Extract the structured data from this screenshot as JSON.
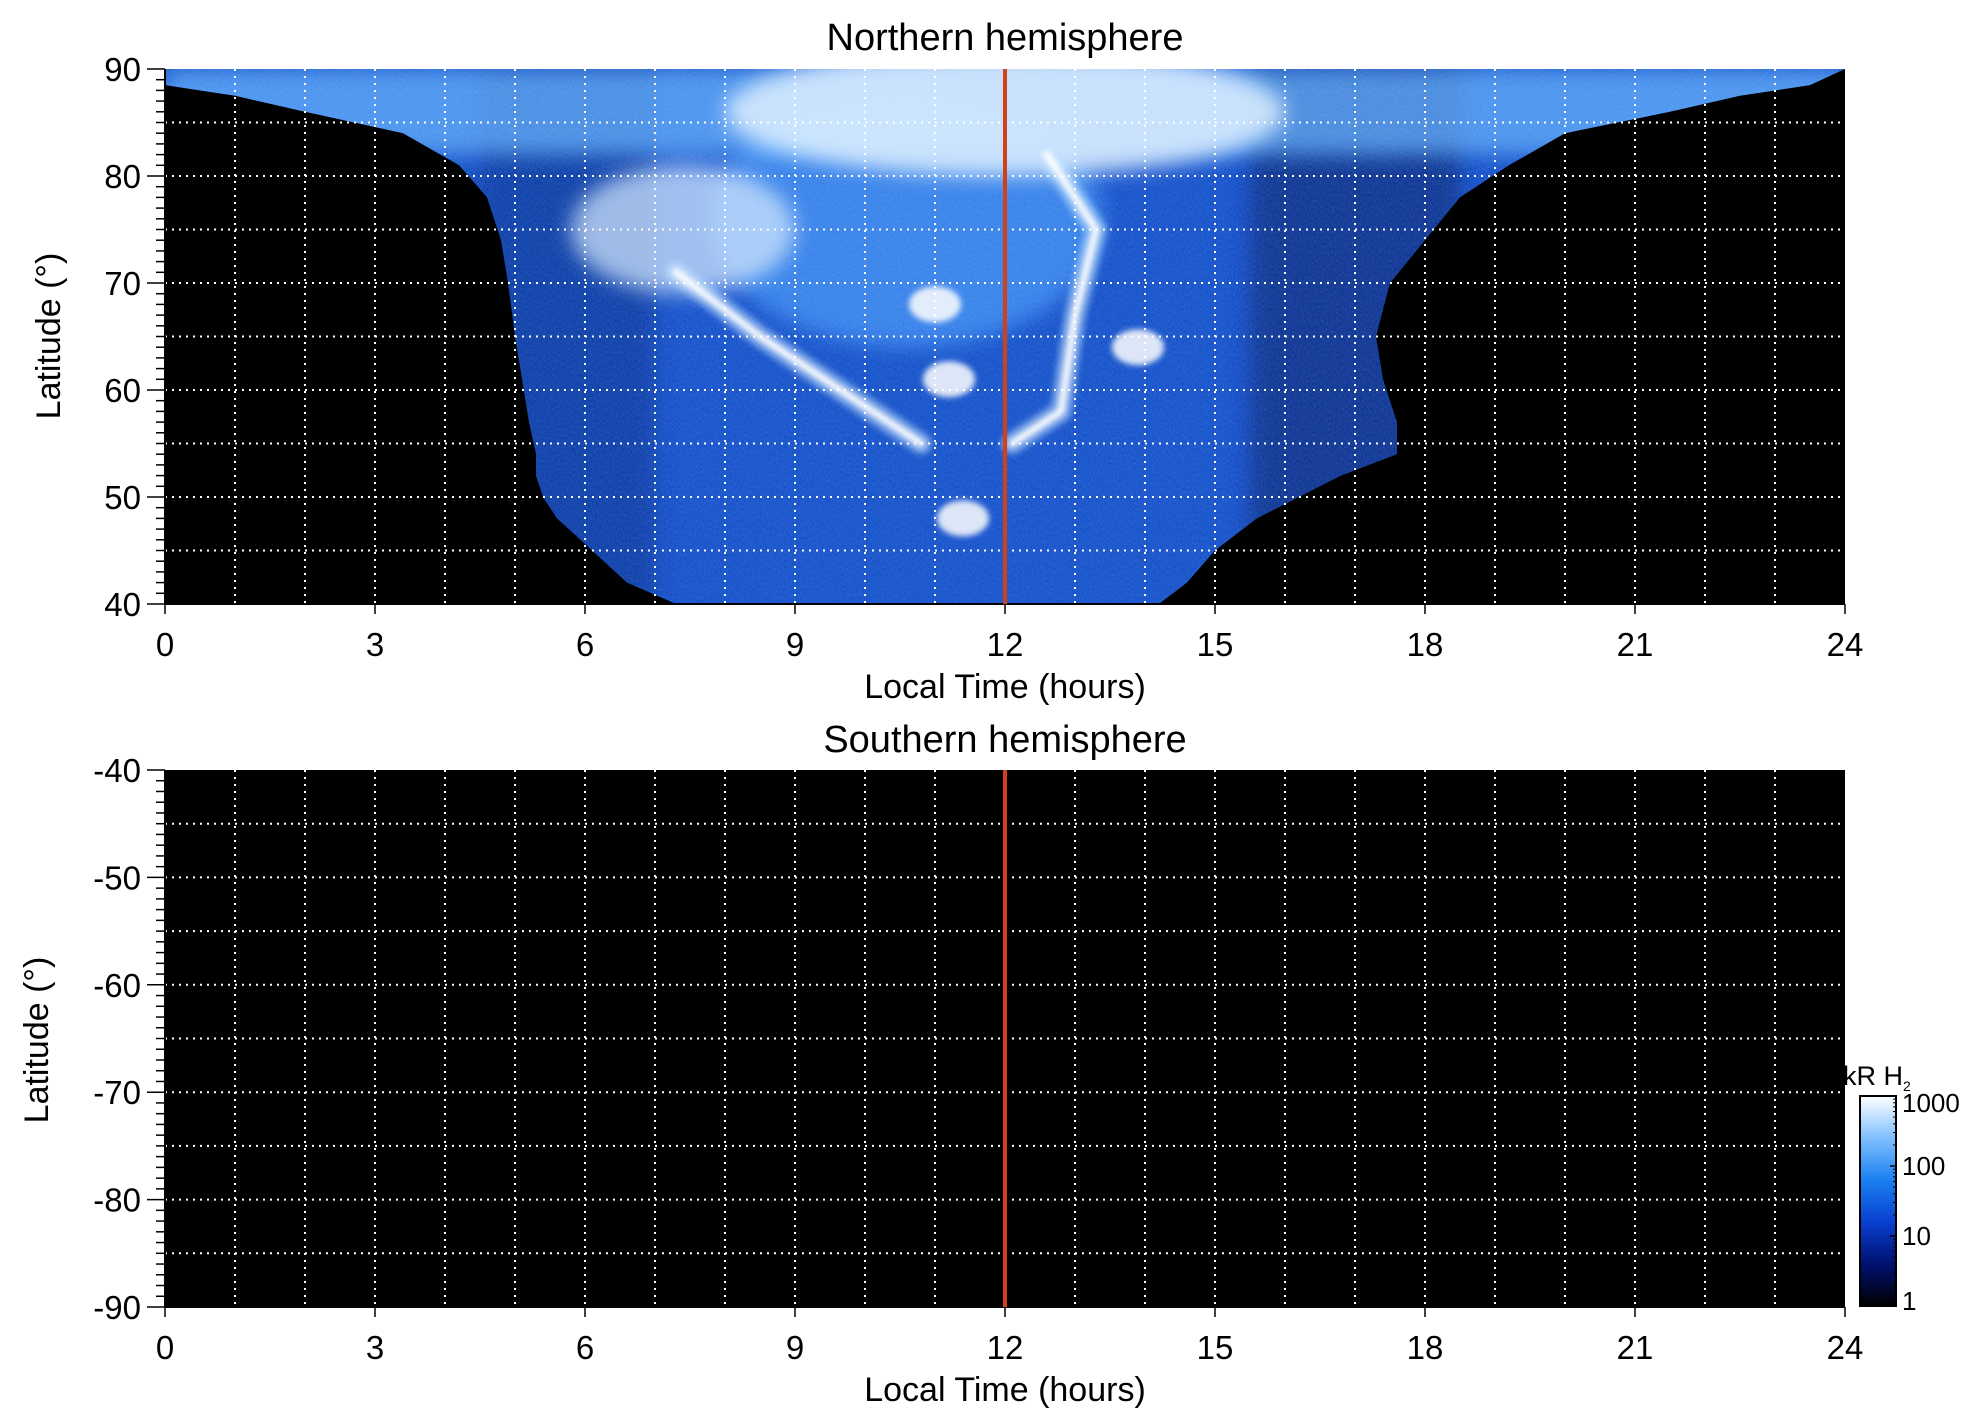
{
  "chart_data": [
    {
      "type": "heatmap",
      "title": "Northern hemisphere",
      "xlabel": "Local Time (hours)",
      "ylabel": "Latitude (°)",
      "xlim": [
        0,
        24
      ],
      "ylim": [
        40,
        90
      ],
      "xticks": [
        0,
        3,
        6,
        9,
        12,
        15,
        18,
        21,
        24
      ],
      "yticks": [
        40,
        50,
        60,
        70,
        80,
        90
      ],
      "grid": true,
      "background": "#000000",
      "marker_line": {
        "x": 12,
        "color": "#d0401a"
      },
      "coverage": {
        "lat_min_start": 40,
        "edges": [
          {
            "lat": 40,
            "lt_start": 7.3,
            "lt_end": 14.2
          },
          {
            "lat": 42,
            "lt_start": 6.6,
            "lt_end": 14.6
          },
          {
            "lat": 45,
            "lt_start": 6.1,
            "lt_end": 15.0
          },
          {
            "lat": 48,
            "lt_start": 5.6,
            "lt_end": 15.6
          },
          {
            "lat": 50,
            "lt_start": 5.4,
            "lt_end": 16.2
          },
          {
            "lat": 52,
            "lt_start": 5.3,
            "lt_end": 16.8
          },
          {
            "lat": 54,
            "lt_start": 5.3,
            "lt_end": 17.6
          },
          {
            "lat": 57,
            "lt_start": 5.2,
            "lt_end": 17.6
          },
          {
            "lat": 61,
            "lt_start": 5.1,
            "lt_end": 17.4
          },
          {
            "lat": 65,
            "lt_start": 5.0,
            "lt_end": 17.3
          },
          {
            "lat": 70,
            "lt_start": 4.9,
            "lt_end": 17.5
          },
          {
            "lat": 74,
            "lt_start": 4.8,
            "lt_end": 18.0
          },
          {
            "lat": 78,
            "lt_start": 4.6,
            "lt_end": 18.5
          },
          {
            "lat": 81,
            "lt_start": 4.2,
            "lt_end": 19.2
          },
          {
            "lat": 84,
            "lt_start": 3.4,
            "lt_end": 20.0
          },
          {
            "lat": 86,
            "lt_start": 2.0,
            "lt_end": 21.5
          },
          {
            "lat": 87.5,
            "lt_start": 1.0,
            "lt_end": 22.5
          },
          {
            "lat": 88.5,
            "lt_start": 0.0,
            "lt_end": 23.5
          },
          {
            "lat": 90,
            "lt_start": 0.0,
            "lt_end": 24.0
          }
        ]
      },
      "emission_features": [
        {
          "kind": "arc",
          "points": [
            [
              7.3,
              71
            ],
            [
              8.5,
              65
            ],
            [
              10.8,
              55
            ]
          ]
        },
        {
          "kind": "arc",
          "points": [
            [
              12.1,
              55
            ],
            [
              12.8,
              58
            ],
            [
              13.0,
              67
            ],
            [
              13.3,
              75
            ],
            [
              12.6,
              82
            ]
          ]
        },
        {
          "kind": "patch",
          "lt": 11.2,
          "lat": 61
        },
        {
          "kind": "patch",
          "lt": 11.0,
          "lat": 68
        },
        {
          "kind": "patch",
          "lt": 13.9,
          "lat": 64
        },
        {
          "kind": "patch",
          "lt": 11.4,
          "lat": 48
        }
      ]
    },
    {
      "type": "heatmap",
      "title": "Southern hemisphere",
      "xlabel": "Local Time (hours)",
      "ylabel": "Latitude (°)",
      "xlim": [
        0,
        24
      ],
      "ylim": [
        -90,
        -40
      ],
      "xticks": [
        0,
        3,
        6,
        9,
        12,
        15,
        18,
        21,
        24
      ],
      "yticks": [
        -40,
        -50,
        -60,
        -70,
        -80,
        -90
      ],
      "grid": true,
      "background": "#000000",
      "marker_line": {
        "x": 12,
        "color": "#d0401a"
      },
      "coverage": null
    }
  ],
  "colorbar": {
    "label": "kR H",
    "label_subscript": "2",
    "scale": "log",
    "range": [
      1,
      1000
    ],
    "ticks": [
      "1000",
      "100",
      "10",
      "1"
    ],
    "colors": [
      "#000000",
      "#001070",
      "#0a40d0",
      "#1a80f0",
      "#80c0ff",
      "#ffffff"
    ]
  }
}
